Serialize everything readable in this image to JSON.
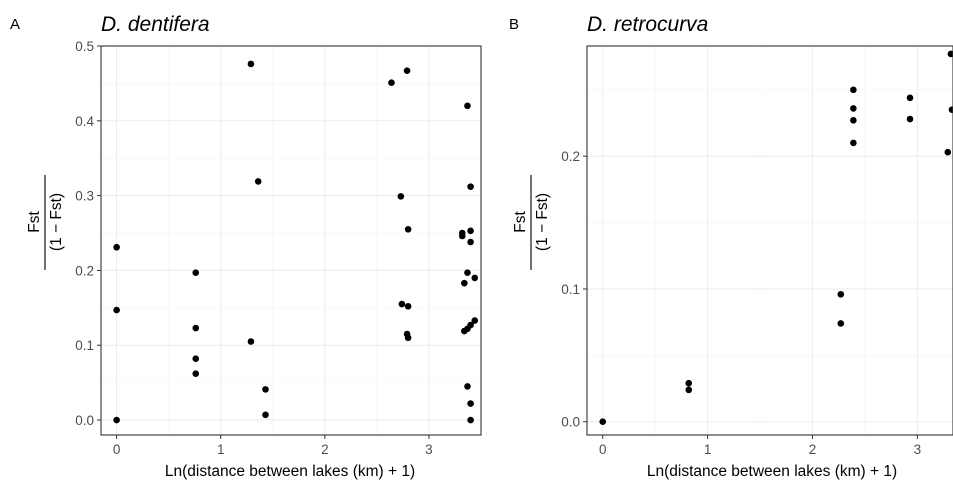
{
  "figure": {
    "panels": [
      {
        "letter": "A",
        "title": "D. dentifera"
      },
      {
        "letter": "B",
        "title": "D. retrocurva"
      }
    ]
  },
  "chart_data": [
    {
      "type": "scatter",
      "panel": "A",
      "title": "D. dentifera",
      "xlabel": "Ln(distance between lakes (km) + 1)",
      "ylabel": {
        "numerator": "Fst",
        "denominator": "(1 − Fst)"
      },
      "xlim": [
        -0.15,
        3.5
      ],
      "ylim": [
        -0.02,
        0.5
      ],
      "xticks": [
        0,
        1,
        2,
        3
      ],
      "yticks": [
        0.0,
        0.1,
        0.2,
        0.3,
        0.4,
        0.5
      ],
      "ytick_labels": [
        "0.0",
        "0.1",
        "0.2",
        "0.3",
        "0.4",
        "0.5"
      ],
      "xtick_labels": [
        "0",
        "1",
        "2",
        "3"
      ],
      "grid": true,
      "points": [
        {
          "x": 0.0,
          "y": 0.231
        },
        {
          "x": 0.0,
          "y": 0.147
        },
        {
          "x": 0.0,
          "y": 0.0
        },
        {
          "x": 0.76,
          "y": 0.197
        },
        {
          "x": 0.76,
          "y": 0.123
        },
        {
          "x": 0.76,
          "y": 0.082
        },
        {
          "x": 0.76,
          "y": 0.062
        },
        {
          "x": 1.29,
          "y": 0.476
        },
        {
          "x": 1.36,
          "y": 0.319
        },
        {
          "x": 1.29,
          "y": 0.105
        },
        {
          "x": 1.43,
          "y": 0.041
        },
        {
          "x": 1.43,
          "y": 0.007
        },
        {
          "x": 2.64,
          "y": 0.451
        },
        {
          "x": 2.79,
          "y": 0.467
        },
        {
          "x": 2.73,
          "y": 0.299
        },
        {
          "x": 2.8,
          "y": 0.255
        },
        {
          "x": 2.74,
          "y": 0.155
        },
        {
          "x": 2.8,
          "y": 0.152
        },
        {
          "x": 2.79,
          "y": 0.115
        },
        {
          "x": 2.8,
          "y": 0.11
        },
        {
          "x": 3.37,
          "y": 0.42
        },
        {
          "x": 3.4,
          "y": 0.312
        },
        {
          "x": 3.4,
          "y": 0.253
        },
        {
          "x": 3.32,
          "y": 0.25
        },
        {
          "x": 3.32,
          "y": 0.246
        },
        {
          "x": 3.4,
          "y": 0.238
        },
        {
          "x": 3.37,
          "y": 0.197
        },
        {
          "x": 3.44,
          "y": 0.19
        },
        {
          "x": 3.34,
          "y": 0.183
        },
        {
          "x": 3.44,
          "y": 0.133
        },
        {
          "x": 3.4,
          "y": 0.127
        },
        {
          "x": 3.37,
          "y": 0.122
        },
        {
          "x": 3.34,
          "y": 0.119
        },
        {
          "x": 3.37,
          "y": 0.045
        },
        {
          "x": 3.4,
          "y": 0.022
        },
        {
          "x": 3.4,
          "y": 0.0
        }
      ]
    },
    {
      "type": "scatter",
      "panel": "B",
      "title": "D. retrocurva",
      "xlabel": "Ln(distance between lakes (km) + 1)",
      "ylabel": {
        "numerator": "Fst",
        "denominator": "(1 − Fst)"
      },
      "xlim": [
        -0.15,
        3.34
      ],
      "ylim": [
        -0.01,
        0.283
      ],
      "xticks": [
        0,
        1,
        2,
        3
      ],
      "yticks": [
        0.0,
        0.1,
        0.2
      ],
      "ytick_labels": [
        "0.0",
        "0.1",
        "0.2"
      ],
      "xtick_labels": [
        "0",
        "1",
        "2",
        "3"
      ],
      "grid": true,
      "points": [
        {
          "x": 0.0,
          "y": 0.0
        },
        {
          "x": 0.82,
          "y": 0.029
        },
        {
          "x": 0.82,
          "y": 0.024
        },
        {
          "x": 2.27,
          "y": 0.096
        },
        {
          "x": 2.27,
          "y": 0.074
        },
        {
          "x": 2.39,
          "y": 0.25
        },
        {
          "x": 2.39,
          "y": 0.236
        },
        {
          "x": 2.39,
          "y": 0.227
        },
        {
          "x": 2.39,
          "y": 0.21
        },
        {
          "x": 2.93,
          "y": 0.244
        },
        {
          "x": 2.93,
          "y": 0.228
        },
        {
          "x": 3.32,
          "y": 0.277
        },
        {
          "x": 3.33,
          "y": 0.235
        },
        {
          "x": 3.29,
          "y": 0.203
        }
      ]
    }
  ]
}
